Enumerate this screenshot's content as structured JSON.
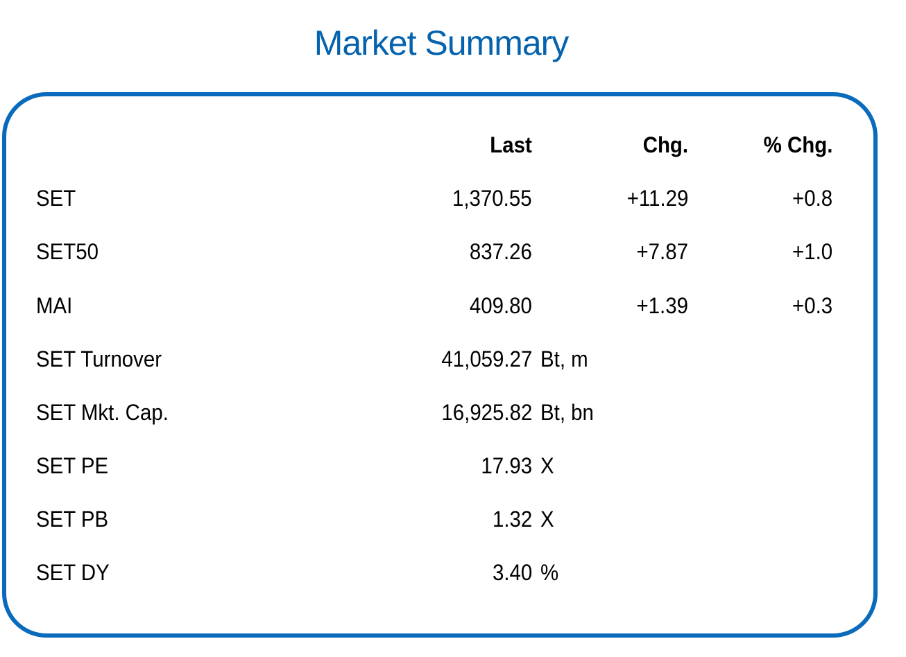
{
  "title": "Market Summary",
  "columns": {
    "last": "Last",
    "chg": "Chg.",
    "pct_chg": "% Chg."
  },
  "rows": [
    {
      "label": "SET",
      "last": "1,370.55",
      "chg": "+11.29",
      "pct_chg": "+0.8"
    },
    {
      "label": "SET50",
      "last": "837.26",
      "chg": "+7.87",
      "pct_chg": "+1.0"
    },
    {
      "label": "MAI",
      "last": "409.80",
      "chg": "+1.39",
      "pct_chg": "+0.3"
    },
    {
      "label": "SET Turnover",
      "last": "41,059.27",
      "unit": "Bt, m"
    },
    {
      "label": "SET Mkt. Cap.",
      "last": "16,925.82",
      "unit": "Bt, bn"
    },
    {
      "label": "SET PE",
      "last": "17.93",
      "unit": "X"
    },
    {
      "label": "SET PB",
      "last": "1.32",
      "unit": "X"
    },
    {
      "label": "SET DY",
      "last": "3.40",
      "unit": "%"
    }
  ],
  "colors": {
    "title": "#0563ae",
    "border": "#0a6bbd",
    "text": "#000000"
  }
}
